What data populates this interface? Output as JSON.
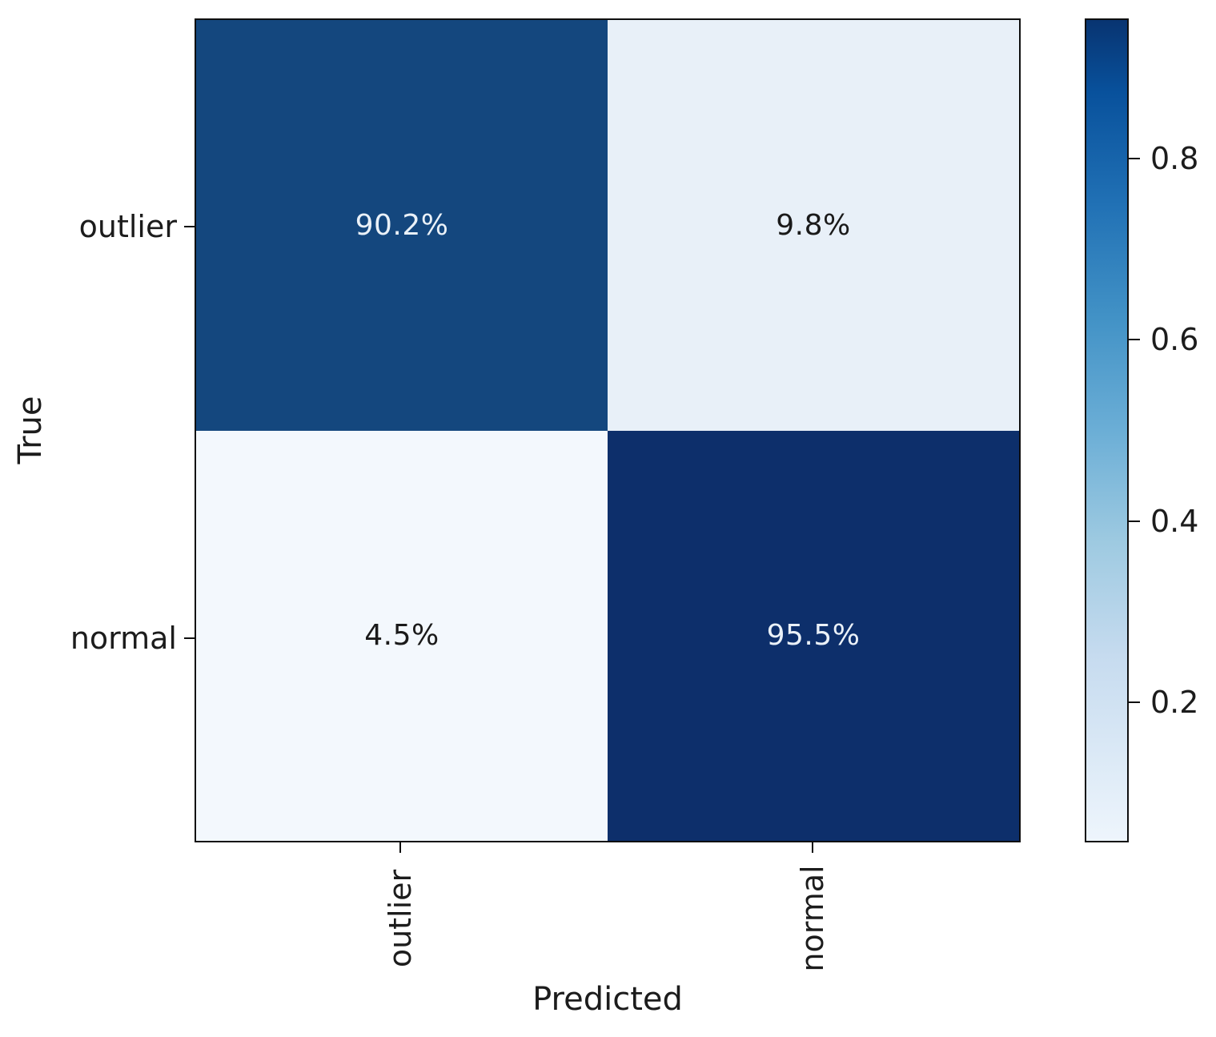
{
  "chart_data": {
    "type": "heatmap",
    "title": "",
    "xlabel": "Predicted",
    "ylabel": "True",
    "rows": [
      "outlier",
      "normal"
    ],
    "columns": [
      "outlier",
      "normal"
    ],
    "values_percent": [
      [
        90.2,
        9.8
      ],
      [
        4.5,
        95.5
      ]
    ],
    "colormap": "Blues",
    "vmin": 0.045,
    "vmax": 0.955,
    "grid": false,
    "cells": [
      {
        "row": "outlier",
        "col": "outlier",
        "label": "90.2%",
        "value": 0.902,
        "bg": "#14477e",
        "fg": "#eaf1f8"
      },
      {
        "row": "outlier",
        "col": "normal",
        "label": "9.8%",
        "value": 0.098,
        "bg": "#e8f0f8",
        "fg": "#1a1a1a"
      },
      {
        "row": "normal",
        "col": "outlier",
        "label": "4.5%",
        "value": 0.045,
        "bg": "#f3f8fd",
        "fg": "#1a1a1a"
      },
      {
        "row": "normal",
        "col": "normal",
        "label": "95.5%",
        "value": 0.955,
        "bg": "#0d2f6b",
        "fg": "#eaf1f8"
      }
    ],
    "colorbar": {
      "position": "right",
      "tick_labels": [
        "0.8",
        "0.6",
        "0.4",
        "0.2"
      ],
      "tick_values": [
        0.8,
        0.6,
        0.4,
        0.2
      ],
      "gradient_stops": [
        {
          "pos": 0,
          "color": "#083471"
        },
        {
          "pos": 8.8,
          "color": "#08519c"
        },
        {
          "pos": 22.5,
          "color": "#2171b5"
        },
        {
          "pos": 36.3,
          "color": "#4292c6"
        },
        {
          "pos": 50,
          "color": "#6baed6"
        },
        {
          "pos": 63.7,
          "color": "#9ecae1"
        },
        {
          "pos": 77.5,
          "color": "#c6dbef"
        },
        {
          "pos": 91.2,
          "color": "#deebf7"
        },
        {
          "pos": 100,
          "color": "#eef5fc"
        }
      ]
    }
  }
}
